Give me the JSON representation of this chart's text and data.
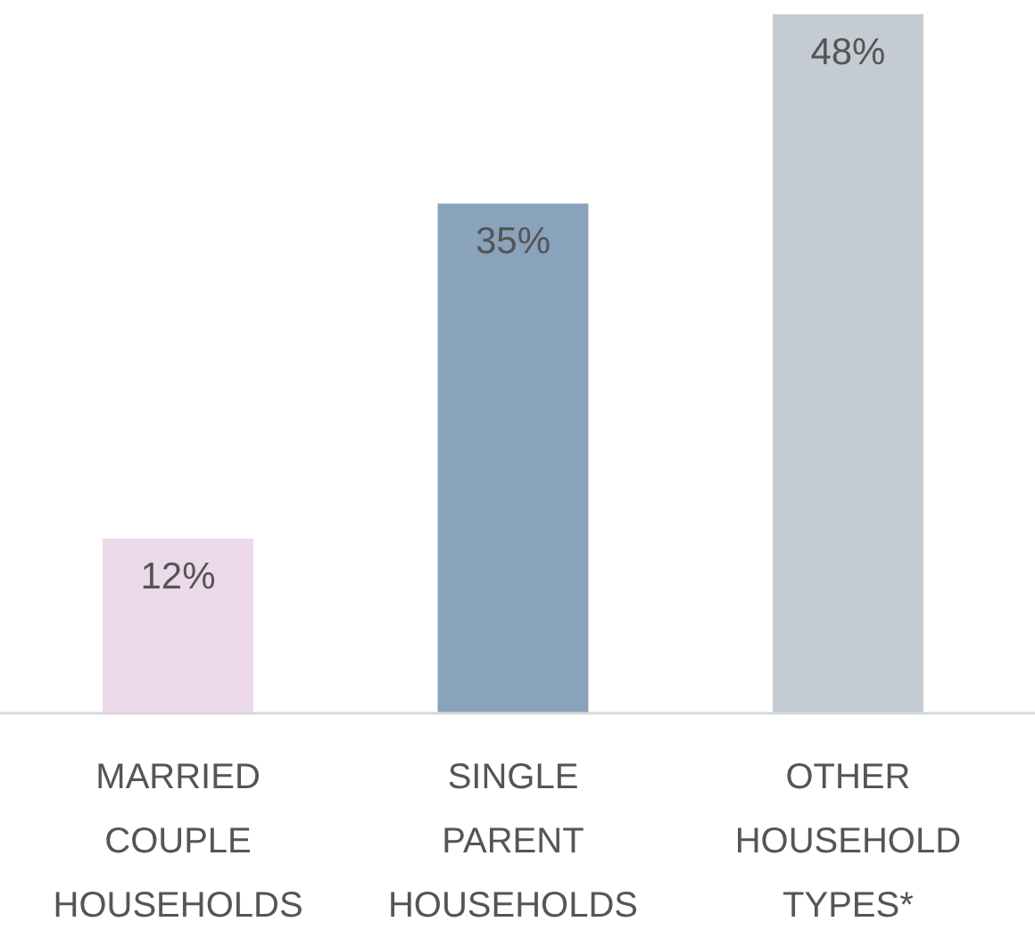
{
  "chart_data": {
    "type": "bar",
    "categories": [
      "MARRIED COUPLE HOUSEHOLDS",
      "SINGLE PARENT HOUSEHOLDS",
      "OTHER HOUSEHOLD TYPES*"
    ],
    "values": [
      12,
      35,
      48
    ],
    "colors": [
      "#ecd9ea",
      "#8aa3bc",
      "#c5cbd3"
    ],
    "value_labels": [
      "12%",
      "35%",
      "48%"
    ]
  }
}
